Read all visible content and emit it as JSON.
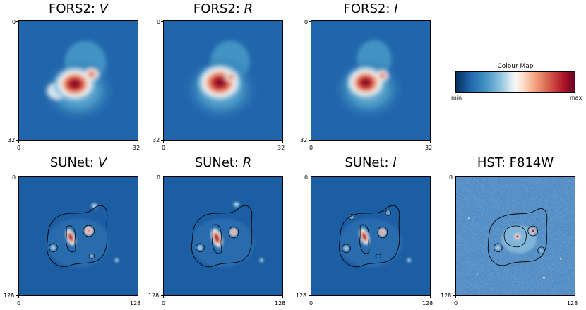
{
  "panels": [
    {
      "prefix": "FORS2: ",
      "band": "V",
      "ticks": {
        "y_top": "0",
        "y_bottom": "32",
        "x_left": "0",
        "x_right": "32"
      }
    },
    {
      "prefix": "FORS2: ",
      "band": "R",
      "ticks": {
        "y_top": "0",
        "y_bottom": "32",
        "x_left": "0",
        "x_right": "32"
      }
    },
    {
      "prefix": "FORS2: ",
      "band": "I",
      "ticks": {
        "y_top": "0",
        "y_bottom": "32",
        "x_left": "0",
        "x_right": "32"
      }
    },
    {
      "prefix": "SUNet: ",
      "band": "V",
      "ticks": {
        "y_top": "0",
        "y_bottom": "128",
        "x_left": "0",
        "x_right": "128"
      }
    },
    {
      "prefix": "SUNet: ",
      "band": "R",
      "ticks": {
        "y_top": "0",
        "y_bottom": "128",
        "x_left": "0",
        "x_right": "128"
      }
    },
    {
      "prefix": "SUNet: ",
      "band": "I",
      "ticks": {
        "y_top": "0",
        "y_bottom": "128",
        "x_left": "0",
        "x_right": "128"
      }
    },
    {
      "prefix": "HST: F814W",
      "band": "",
      "ticks": {
        "y_top": "0",
        "y_bottom": "128",
        "x_left": "0",
        "x_right": "128"
      }
    }
  ],
  "colour_map": {
    "title": "Colour Map",
    "min_label": "min",
    "max_label": "max",
    "colors": [
      "#053061",
      "#2166ac",
      "#4393c3",
      "#92c5de",
      "#f7f7f7",
      "#f4a582",
      "#d6604d",
      "#b2182b",
      "#67001f"
    ]
  }
}
